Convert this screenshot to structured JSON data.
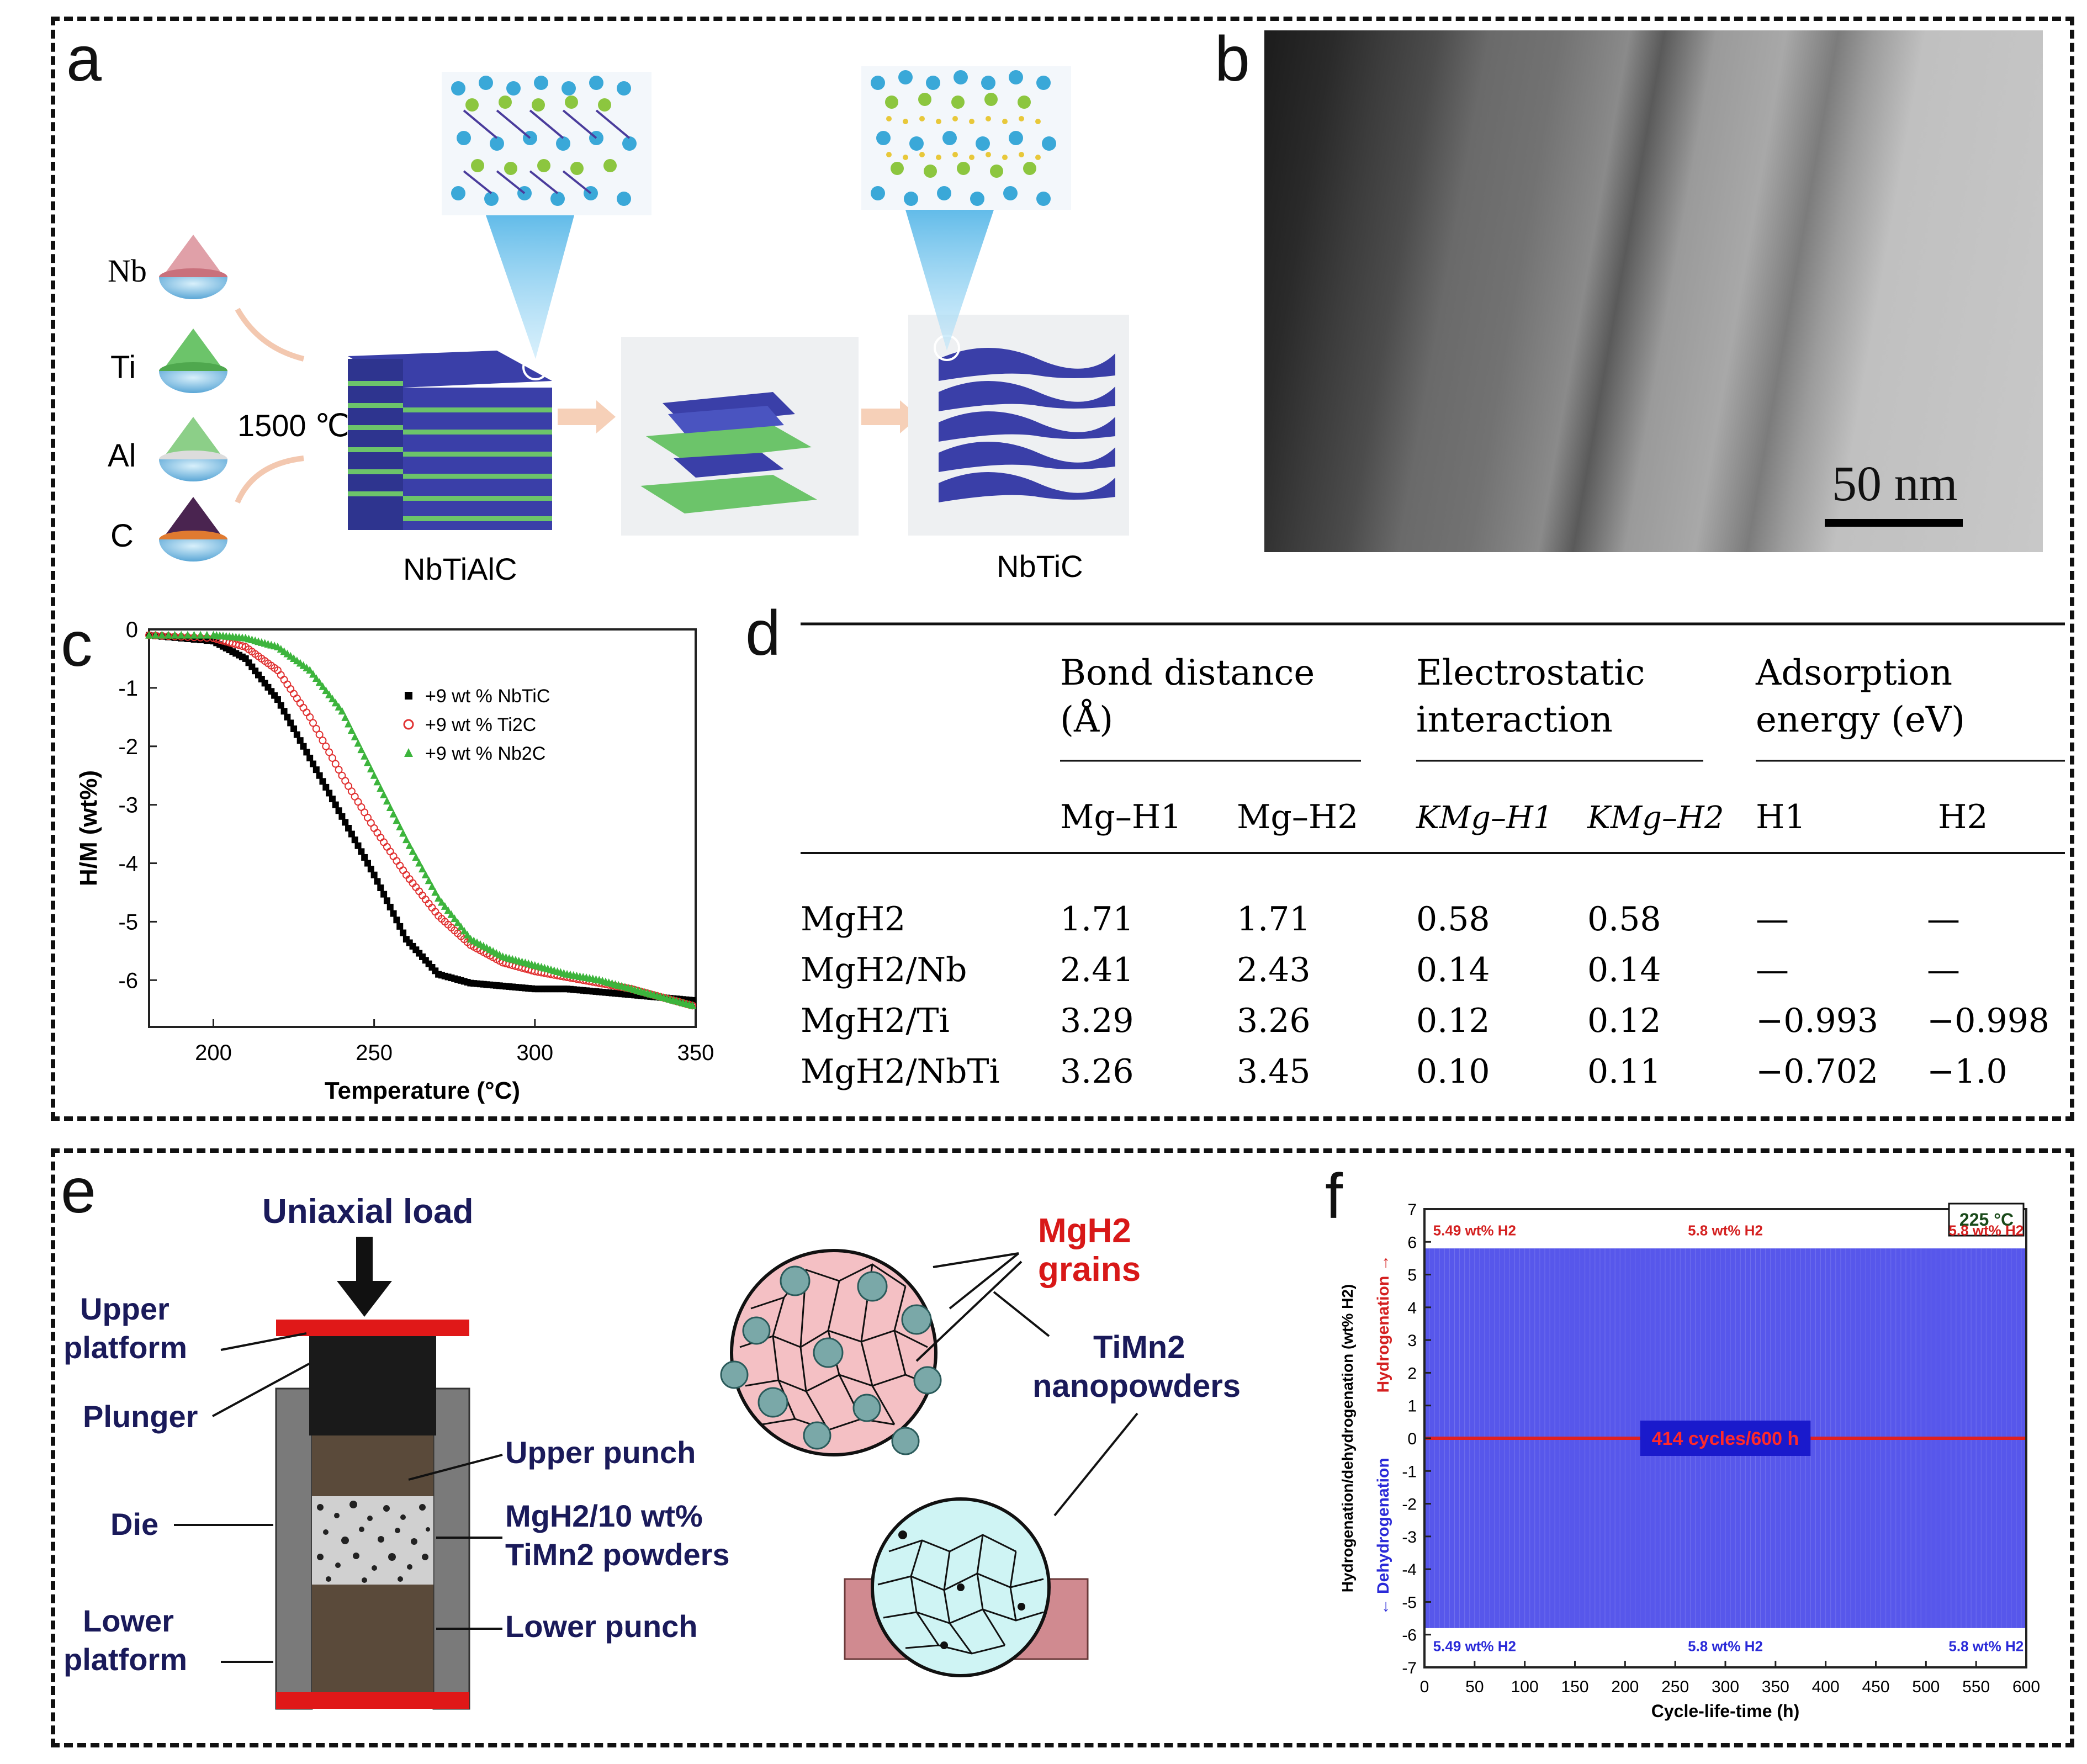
{
  "panel_labels": {
    "a": "a",
    "b": "b",
    "c": "c",
    "d": "d",
    "e": "e",
    "f": "f"
  },
  "panel_a": {
    "elements": [
      "Nb",
      "Ti",
      "Al",
      "C"
    ],
    "temperature": "1500 ℃",
    "label_max": "NbTiAlC",
    "label_mxene": "NbTiC",
    "colors": {
      "layer_dark": "#3a3fa8",
      "layer_green": "#6cc46a",
      "atom_blue": "#3aa8d8",
      "atom_green": "#8cc63f",
      "atom_yellow": "#e8c83a",
      "arrow": "#f6d0b8"
    }
  },
  "panel_b": {
    "scale_bar": "50 nm"
  },
  "chart_data": [
    {
      "type": "line",
      "x": [
        180,
        200,
        210,
        220,
        230,
        240,
        250,
        260,
        270,
        280,
        290,
        300,
        310,
        320,
        330,
        340,
        350
      ],
      "series": [
        {
          "name": "+9 wt % NbTiC",
          "marker": "square",
          "color": "#000000",
          "values": [
            -0.1,
            -0.2,
            -0.5,
            -1.2,
            -2.2,
            -3.2,
            -4.2,
            -5.3,
            -5.9,
            -6.05,
            -6.1,
            -6.15,
            -6.15,
            -6.2,
            -6.25,
            -6.3,
            -6.35
          ]
        },
        {
          "name": "+9 wt % Ti2C",
          "marker": "circle",
          "color": "#e03030",
          "values": [
            -0.1,
            -0.15,
            -0.3,
            -0.7,
            -1.5,
            -2.5,
            -3.4,
            -4.2,
            -4.9,
            -5.4,
            -5.7,
            -5.85,
            -5.95,
            -6.05,
            -6.15,
            -6.3,
            -6.45
          ]
        },
        {
          "name": "+9 wt % Nb2C",
          "marker": "triangle",
          "color": "#3cb43c",
          "values": [
            -0.1,
            -0.1,
            -0.15,
            -0.3,
            -0.7,
            -1.4,
            -2.5,
            -3.6,
            -4.6,
            -5.3,
            -5.6,
            -5.75,
            -5.9,
            -6.0,
            -6.15,
            -6.3,
            -6.45
          ]
        }
      ],
      "title": "",
      "xlabel": "Temperature (°C)",
      "ylabel": "H/M (wt%)",
      "xlim": [
        180,
        350
      ],
      "ylim": [
        -6.8,
        0
      ],
      "xticks": [
        200,
        250,
        300,
        350
      ],
      "yticks": [
        0,
        -1,
        -2,
        -3,
        -4,
        -5,
        -6
      ],
      "legend": "top-right"
    },
    {
      "type": "area",
      "title": "",
      "xlabel": "Cycle-life-time (h)",
      "ylabel": "Hydrogenation/dehydrogenation (wt% H2)",
      "ylabel_up": "Hydrogenation",
      "ylabel_down": "Dehydrogenation",
      "xlim": [
        0,
        600
      ],
      "ylim": [
        -7,
        7
      ],
      "xticks": [
        0,
        50,
        100,
        150,
        200,
        250,
        300,
        350,
        400,
        450,
        500,
        550,
        600
      ],
      "yticks": [
        7,
        6,
        5,
        4,
        3,
        2,
        1,
        0,
        -1,
        -2,
        -3,
        -4,
        -5,
        -6,
        -7
      ],
      "upper_band": [
        0,
        5.8
      ],
      "lower_band": [
        -5.8,
        0
      ],
      "temperature_box": "225 °C",
      "cycles_label": "414 cycles/600 h",
      "annotations_top": [
        "5.49 wt% H2",
        "5.8 wt% H2",
        "5.8 wt% H2"
      ],
      "annotations_bottom": [
        "5.49 wt% H2",
        "5.8 wt% H2",
        "5.8 wt% H2"
      ],
      "colors": {
        "band": "#3a3ae8",
        "zero_line": "#e02020",
        "up_label": "#d42020",
        "down_label": "#2a2ad8"
      }
    }
  ],
  "panel_d": {
    "headers": {
      "bond": [
        "Bond distance",
        "(Å)"
      ],
      "electro": [
        "Electrostatic",
        "interaction"
      ],
      "adsorb": [
        "Adsorption",
        "energy (eV)"
      ]
    },
    "subheaders": [
      "Mg–H1",
      "Mg–H2",
      "KMg–H1",
      "KMg–H2",
      "H1",
      "H2"
    ],
    "rows": [
      {
        "name": "MgH2",
        "v": [
          "1.71",
          "1.71",
          "0.58",
          "0.58",
          "—",
          "—"
        ]
      },
      {
        "name": "MgH2/Nb",
        "v": [
          "2.41",
          "2.43",
          "0.14",
          "0.14",
          "—",
          "—"
        ]
      },
      {
        "name": "MgH2/Ti",
        "v": [
          "3.29",
          "3.26",
          "0.12",
          "0.12",
          "−0.993",
          "−0.998"
        ]
      },
      {
        "name": "MgH2/NbTi",
        "v": [
          "3.26",
          "3.45",
          "0.10",
          "0.11",
          "−0.702",
          "−1.0"
        ]
      }
    ]
  },
  "panel_e": {
    "uniaxial_load": "Uniaxial load",
    "upper_platform": [
      "Upper",
      "platform"
    ],
    "plunger": "Plunger",
    "die": "Die",
    "lower_platform": [
      "Lower",
      "platform"
    ],
    "upper_punch": "Upper punch",
    "powders": [
      "MgH2/10 wt%",
      "TiMn2 powders"
    ],
    "lower_punch": "Lower punch",
    "mgh2_grains": [
      "MgH2",
      "grains"
    ],
    "timn2": [
      "TiMn2",
      "nanopowders"
    ],
    "colors": {
      "platform": "#e01818",
      "label": "#1a1a5a",
      "red_label": "#d81818"
    }
  }
}
